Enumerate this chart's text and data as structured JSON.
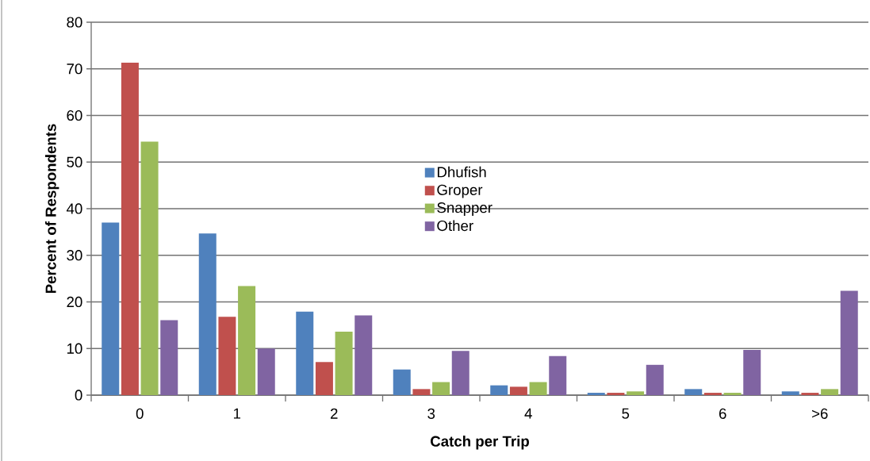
{
  "chart_data": {
    "type": "bar",
    "xlabel": "Catch per Trip",
    "ylabel": "Percent of Respondents",
    "categories": [
      "0",
      "1",
      "2",
      "3",
      "4",
      "5",
      "6",
      ">6"
    ],
    "series": [
      {
        "name": "Dhufish",
        "color": "#4f81bd",
        "values": [
          37.0,
          34.7,
          17.9,
          5.5,
          2.1,
          0.5,
          1.3,
          0.8
        ]
      },
      {
        "name": "Groper",
        "color": "#c0504d",
        "values": [
          71.3,
          16.8,
          7.1,
          1.3,
          1.8,
          0.5,
          0.5,
          0.5
        ]
      },
      {
        "name": "Snapper",
        "color": "#9bbb59",
        "values": [
          54.4,
          23.4,
          13.6,
          2.8,
          2.8,
          0.8,
          0.5,
          1.3
        ]
      },
      {
        "name": "Other",
        "color": "#8064a2",
        "values": [
          16.1,
          10.0,
          17.1,
          9.5,
          8.4,
          6.5,
          9.7,
          22.4
        ]
      }
    ],
    "ylim": [
      0,
      80
    ],
    "yticks": [
      0,
      10,
      20,
      30,
      40,
      50,
      60,
      70,
      80
    ],
    "grid": "y",
    "legend": "center"
  }
}
